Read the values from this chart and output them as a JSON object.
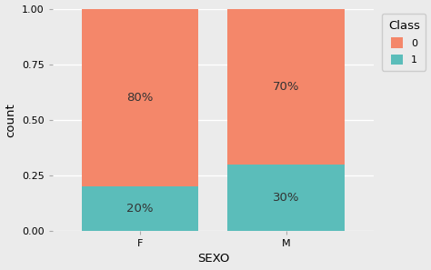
{
  "categories": [
    "F",
    "M"
  ],
  "class1_values": [
    0.2,
    0.3
  ],
  "class0_values": [
    0.8,
    0.7
  ],
  "class1_labels": [
    "20%",
    "30%"
  ],
  "class0_labels": [
    "80%",
    "70%"
  ],
  "color_class0": "#F4876A",
  "color_class1": "#5BBDBA",
  "xlabel": "SEXO",
  "ylabel": "count",
  "ylim": [
    0.0,
    1.0
  ],
  "yticks": [
    0.0,
    0.25,
    0.5,
    0.75,
    1.0
  ],
  "legend_title": "Class",
  "legend_labels": [
    "0",
    "1"
  ],
  "background_color": "#EBEBEB",
  "panel_background": "#EBEBEB",
  "grid_color": "#FFFFFF",
  "bar_width": 0.8,
  "x_positions": [
    1,
    2
  ],
  "xlim": [
    0.4,
    2.6
  ],
  "label_fontsize": 9.5,
  "axis_fontsize": 9.5,
  "legend_fontsize": 9.5
}
